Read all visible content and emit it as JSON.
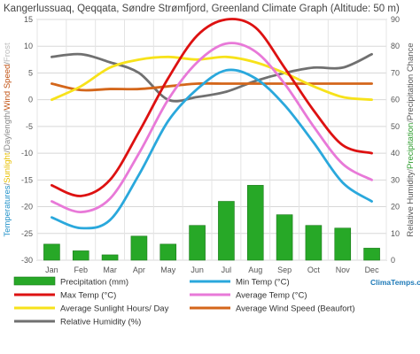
{
  "chart_data": {
    "type": "line",
    "title": "Kangerlussuaq, Qeqqata, Søndre Strømfjord, Greenland Climate Graph (Altitude: 50 m)",
    "categories": [
      "Jan",
      "Feb",
      "Mar",
      "Apr",
      "May",
      "Jun",
      "Jul",
      "Aug",
      "Sep",
      "Oct",
      "Nov",
      "Dec"
    ],
    "ylabel_left_parts": [
      "Temperatures",
      "/",
      "Sunlight",
      "/",
      "Daylength",
      "/",
      "Wind Speed",
      "/",
      "Frost"
    ],
    "ylabel_left_colors": [
      "#1e90c8",
      "#888888",
      "#e8c000",
      "#888888",
      "#888888",
      "#888888",
      "#c05010",
      "#888888",
      "#bbbbbb"
    ],
    "ylabel_right_parts": [
      "Relative Humidity",
      "/",
      "Precipitation",
      "/",
      "Precipitation Chance"
    ],
    "ylabel_right_colors": [
      "#555555",
      "#888888",
      "#2a9a2a",
      "#888888",
      "#555555"
    ],
    "left_axis": {
      "min": -30,
      "max": 15,
      "ticks": [
        -30,
        -25,
        -20,
        -15,
        -10,
        -5,
        0,
        5,
        10,
        15
      ]
    },
    "right_axis": {
      "min": 0,
      "max": 90,
      "ticks": [
        0,
        10,
        20,
        30,
        40,
        50,
        60,
        70,
        80,
        90
      ]
    },
    "precipitation": {
      "name": "Precipitation (mm)",
      "color": "#27a827",
      "axis": "right",
      "values": [
        6,
        3.5,
        2,
        9,
        6,
        13,
        22,
        28,
        17,
        13,
        12,
        4.5
      ]
    },
    "series": [
      {
        "name": "Min Temp (°C)",
        "color": "#2aa8dc",
        "axis": "left",
        "values": [
          -22,
          -24,
          -22.5,
          -14,
          -4,
          2,
          5.5,
          4,
          -1,
          -8,
          -15.5,
          -19
        ]
      },
      {
        "name": "Max Temp (°C)",
        "color": "#dd1111",
        "axis": "left",
        "values": [
          -16,
          -18,
          -15,
          -6,
          4,
          12,
          15,
          13.5,
          6,
          -2,
          -8.5,
          -10
        ]
      },
      {
        "name": "Average Temp (°C)",
        "color": "#e879d8",
        "axis": "left",
        "values": [
          -19,
          -21,
          -18.5,
          -10,
          0,
          7,
          10.5,
          9,
          3,
          -5,
          -12,
          -15
        ]
      },
      {
        "name": "Average Sunlight Hours/ Day",
        "color": "#f7e21a",
        "axis": "left",
        "values": [
          0,
          2.5,
          6,
          7.5,
          8,
          7.5,
          8,
          7,
          5,
          2.5,
          0.5,
          0
        ]
      },
      {
        "name": "Average Wind Speed (Beaufort)",
        "color": "#d4661a",
        "axis": "left",
        "values": [
          3,
          1.8,
          2,
          2,
          2.5,
          3,
          3,
          3,
          3,
          3,
          3,
          3
        ]
      },
      {
        "name": "Relative Humidity (%)",
        "color": "#707070",
        "axis": "right",
        "values": [
          76,
          77,
          74,
          70,
          60,
          61,
          63,
          67,
          70,
          72,
          72,
          77
        ]
      }
    ],
    "grid": true,
    "legend": "bottom"
  },
  "brand": "ClimaTemps.com"
}
